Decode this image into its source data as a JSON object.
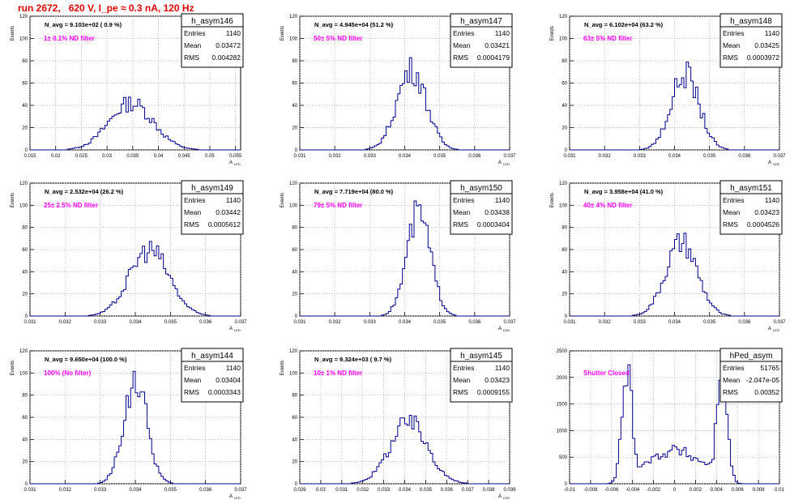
{
  "page_title": "run 2672,   620 V, I_pe ≈ 0.3 nA, 120 Hz",
  "colors": {
    "hist": "#00008b",
    "annotation": "#ff00ff",
    "title": "#e00000",
    "grid": "#aaaaaa"
  },
  "chart_data": [
    {
      "type": "histogram",
      "name": "h_asym146",
      "entries": "1140",
      "mean": "0.03472",
      "rms": "0.004282",
      "navg": "N_avg = 9.103e+02 ( 0.9 %)",
      "note": "1± 0.1% ND filter",
      "xlim": [
        0.015,
        0.056
      ],
      "ylim": [
        0,
        120
      ],
      "ylabel": "Events",
      "xlabel": "A",
      "xticks": [
        "0.015",
        "0.02",
        "0.025",
        "0.03",
        "0.035",
        "0.04",
        "0.045",
        "0.05",
        "0.055"
      ],
      "yticks": [
        "0",
        "20",
        "40",
        "60",
        "80",
        "100",
        "120"
      ],
      "center": 0.0347,
      "sigma": 0.0043,
      "peak": 42,
      "shape": "broad"
    },
    {
      "type": "histogram",
      "name": "h_asym147",
      "entries": "1140",
      "mean": "0.03421",
      "rms": "0.0004179",
      "navg": "N_avg = 4.945e+04 (51.2 %)",
      "note": "50± 5% ND filter",
      "xlim": [
        0.031,
        0.037
      ],
      "ylim": [
        0,
        120
      ],
      "ylabel": "Events",
      "xlabel": "A",
      "xticks": [
        "0.031",
        "0.032",
        "0.033",
        "0.034",
        "0.035",
        "0.036",
        "0.037"
      ],
      "yticks": [
        "0",
        "20",
        "40",
        "60",
        "80",
        "100",
        "120"
      ],
      "center": 0.0342,
      "sigma": 0.00042,
      "peak": 72,
      "shape": "normal"
    },
    {
      "type": "histogram",
      "name": "h_asym148",
      "entries": "1140",
      "mean": "0.03425",
      "rms": "0.0003972",
      "navg": "N_avg = 6.102e+04 (63.2 %)",
      "note": "63± 5% ND filter",
      "xlim": [
        0.031,
        0.037
      ],
      "ylim": [
        0,
        120
      ],
      "ylabel": "Events",
      "xlabel": "A",
      "xticks": [
        "0.031",
        "0.032",
        "0.033",
        "0.034",
        "0.035",
        "0.036",
        "0.037"
      ],
      "yticks": [
        "0",
        "20",
        "40",
        "60",
        "80",
        "100",
        "120"
      ],
      "center": 0.0343,
      "sigma": 0.0004,
      "peak": 68,
      "shape": "normal"
    },
    {
      "type": "histogram",
      "name": "h_asym149",
      "entries": "1140",
      "mean": "0.03442",
      "rms": "0.0005612",
      "navg": "N_avg = 2.532e+04 (26.2 %)",
      "note": "25± 2.5% ND filter",
      "xlim": [
        0.031,
        0.037
      ],
      "ylim": [
        0,
        120
      ],
      "ylabel": "Events",
      "xlabel": "A",
      "xticks": [
        "0.031",
        "0.032",
        "0.033",
        "0.034",
        "0.035",
        "0.036",
        "0.037"
      ],
      "yticks": [
        "0",
        "20",
        "40",
        "60",
        "80",
        "100",
        "120"
      ],
      "center": 0.0344,
      "sigma": 0.00056,
      "peak": 60,
      "shape": "normal"
    },
    {
      "type": "histogram",
      "name": "h_asym150",
      "entries": "1140",
      "mean": "0.03438",
      "rms": "0.0003404",
      "navg": "N_avg = 7.719e+04 (80.0 %)",
      "note": "79± 5% ND filter",
      "xlim": [
        0.031,
        0.037
      ],
      "ylim": [
        0,
        120
      ],
      "ylabel": "Events",
      "xlabel": "A",
      "xticks": [
        "0.031",
        "0.032",
        "0.033",
        "0.034",
        "0.035",
        "0.036",
        "0.037"
      ],
      "yticks": [
        "0",
        "20",
        "40",
        "60",
        "80",
        "100",
        "120"
      ],
      "center": 0.0344,
      "sigma": 0.00034,
      "peak": 92,
      "shape": "normal"
    },
    {
      "type": "histogram",
      "name": "h_asym151",
      "entries": "1140",
      "mean": "0.03423",
      "rms": "0.0004526",
      "navg": "N_avg = 3.958e+04 (41.0 %)",
      "note": "40± 4% ND filter",
      "xlim": [
        0.031,
        0.037
      ],
      "ylim": [
        0,
        120
      ],
      "ylabel": "Events",
      "xlabel": "A",
      "xticks": [
        "0.031",
        "0.032",
        "0.033",
        "0.034",
        "0.035",
        "0.036",
        "0.037"
      ],
      "yticks": [
        "0",
        "20",
        "40",
        "60",
        "80",
        "100",
        "120"
      ],
      "center": 0.0342,
      "sigma": 0.00045,
      "peak": 65,
      "shape": "normal"
    },
    {
      "type": "histogram",
      "name": "h_asym144",
      "entries": "1140",
      "mean": "0.03404",
      "rms": "0.0003343",
      "navg": "N_avg = 9.650e+04 (100.0 %)",
      "note": "100% (No filter)",
      "xlim": [
        0.031,
        0.037
      ],
      "ylim": [
        0,
        120
      ],
      "ylabel": "Events",
      "xlabel": "A",
      "xticks": [
        "0.031",
        "0.032",
        "0.033",
        "0.034",
        "0.035",
        "0.036",
        "0.037"
      ],
      "yticks": [
        "0",
        "20",
        "40",
        "60",
        "80",
        "100",
        "120"
      ],
      "center": 0.034,
      "sigma": 0.00033,
      "peak": 93,
      "shape": "normal"
    },
    {
      "type": "histogram",
      "name": "h_asym145",
      "entries": "1140",
      "mean": "0.03423",
      "rms": "0.0009155",
      "navg": "N_avg = 9.324e+03 ( 9.7 %)",
      "note": "10± 1% ND filter",
      "xlim": [
        0.029,
        0.039
      ],
      "ylim": [
        0,
        120
      ],
      "ylabel": "Events",
      "xlabel": "A",
      "xticks": [
        "0.029",
        "0.03",
        "0.031",
        "0.032",
        "0.033",
        "0.034",
        "0.035",
        "0.036",
        "0.037",
        "0.038",
        "0.039"
      ],
      "yticks": [
        "0",
        "20",
        "40",
        "60",
        "80",
        "100",
        "120"
      ],
      "center": 0.0342,
      "sigma": 0.0009,
      "peak": 55,
      "shape": "normal"
    },
    {
      "type": "histogram",
      "name": "hPed_asym",
      "entries": "51765",
      "mean": "-2.047e-05",
      "rms": "0.00352",
      "navg": "",
      "note": "Shutter Closed",
      "xlim": [
        -0.01,
        0.01
      ],
      "ylim": [
        0,
        2500
      ],
      "ylabel": "",
      "xlabel": "",
      "xticks": [
        "-0.01",
        "-0.008",
        "-0.006",
        "-0.004",
        "-0.002",
        "0",
        "0.002",
        "0.004",
        "0.006",
        "0.008",
        "0.01"
      ],
      "yticks": [
        "0",
        "500",
        "1000",
        "1500",
        "2000",
        "2500"
      ],
      "center": 0,
      "sigma": 0.0035,
      "peak": 2100,
      "shape": "bimodal"
    }
  ],
  "stats_labels": {
    "entries": "Entries",
    "mean": "Mean",
    "rms": "RMS"
  },
  "xlabel_sub": "LED"
}
